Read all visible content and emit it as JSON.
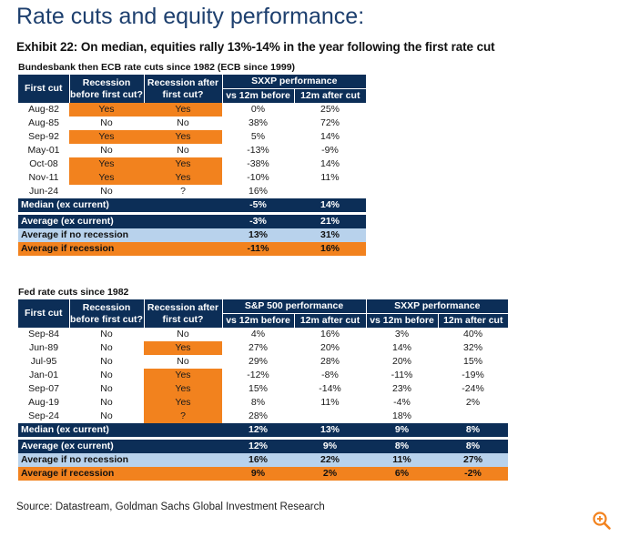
{
  "title": "Rate cuts and equity performance:",
  "exhibit": "Exhibit 22: On median, equities rally 13%-14% in the year following the first rate cut",
  "table1": {
    "caption": "Bundesbank then ECB rate cuts since 1982 (ECB since 1999)",
    "header": {
      "first_cut": "First cut",
      "rec_before": "Recession before first cut?",
      "rec_after": "Recession after first cut?",
      "perf": "SXXP performance",
      "before": "vs 12m before",
      "after": "12m after cut"
    },
    "rows": [
      {
        "date": "Aug-82",
        "rb": "Yes",
        "ra": "Yes",
        "before": "0%",
        "after": "25%"
      },
      {
        "date": "Aug-85",
        "rb": "No",
        "ra": "No",
        "before": "38%",
        "after": "72%"
      },
      {
        "date": "Sep-92",
        "rb": "Yes",
        "ra": "Yes",
        "before": "5%",
        "after": "14%"
      },
      {
        "date": "May-01",
        "rb": "No",
        "ra": "No",
        "before": "-13%",
        "after": "-9%"
      },
      {
        "date": "Oct-08",
        "rb": "Yes",
        "ra": "Yes",
        "before": "-38%",
        "after": "14%"
      },
      {
        "date": "Nov-11",
        "rb": "Yes",
        "ra": "Yes",
        "before": "-10%",
        "after": "11%"
      },
      {
        "date": "Jun-24",
        "rb": "No",
        "ra": "?",
        "before": "16%",
        "after": ""
      }
    ],
    "summary": [
      {
        "label": "Median (ex current)",
        "before": "-5%",
        "after": "14%"
      },
      {
        "label": "Average (ex current)",
        "before": "-3%",
        "after": "21%"
      },
      {
        "label": "Average if no recession",
        "before": "13%",
        "after": "31%"
      },
      {
        "label": "Average if recession",
        "before": "-11%",
        "after": "16%"
      }
    ]
  },
  "table2": {
    "caption": "Fed rate cuts since 1982",
    "header": {
      "first_cut": "First cut",
      "rec_before": "Recession before first cut?",
      "rec_after": "Recession after first cut?",
      "perf1": "S&P 500 performance",
      "perf2": "SXXP performance",
      "before": "vs 12m before",
      "after": "12m after cut"
    },
    "rows": [
      {
        "date": "Sep-84",
        "rb": "No",
        "ra": "No",
        "spb": "4%",
        "spa": "16%",
        "sxb": "3%",
        "sxa": "40%"
      },
      {
        "date": "Jun-89",
        "rb": "No",
        "ra": "Yes",
        "spb": "27%",
        "spa": "20%",
        "sxb": "14%",
        "sxa": "32%"
      },
      {
        "date": "Jul-95",
        "rb": "No",
        "ra": "No",
        "spb": "29%",
        "spa": "28%",
        "sxb": "20%",
        "sxa": "15%"
      },
      {
        "date": "Jan-01",
        "rb": "No",
        "ra": "Yes",
        "spb": "-12%",
        "spa": "-8%",
        "sxb": "-11%",
        "sxa": "-19%"
      },
      {
        "date": "Sep-07",
        "rb": "No",
        "ra": "Yes",
        "spb": "15%",
        "spa": "-14%",
        "sxb": "23%",
        "sxa": "-24%"
      },
      {
        "date": "Aug-19",
        "rb": "No",
        "ra": "Yes",
        "spb": "8%",
        "spa": "11%",
        "sxb": "-4%",
        "sxa": "2%"
      },
      {
        "date": "Sep-24",
        "rb": "No",
        "ra": "?",
        "spb": "28%",
        "spa": "",
        "sxb": "18%",
        "sxa": ""
      }
    ],
    "summary": [
      {
        "label": "Median (ex current)",
        "spb": "12%",
        "spa": "13%",
        "sxb": "9%",
        "sxa": "8%"
      },
      {
        "label": "Average (ex current)",
        "spb": "12%",
        "spa": "9%",
        "sxb": "8%",
        "sxa": "8%"
      },
      {
        "label": "Average if no recession",
        "spb": "16%",
        "spa": "22%",
        "sxb": "11%",
        "sxa": "27%"
      },
      {
        "label": "Average if recession",
        "spb": "9%",
        "spa": "2%",
        "sxb": "6%",
        "sxa": "-2%"
      }
    ]
  },
  "source": "Source: Datastream, Goldman Sachs Global Investment Research",
  "icons": {
    "zoom": "zoom-in-icon"
  },
  "colors": {
    "navy": "#0c2e57",
    "orange": "#f2821e",
    "light_blue": "#b8d2ec",
    "title": "#1d3f6e"
  }
}
